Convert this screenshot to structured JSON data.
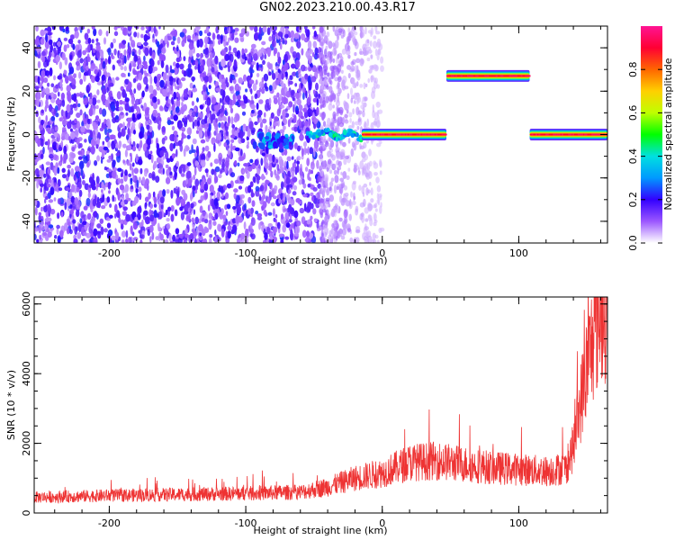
{
  "title": "GN02.2023.210.00.43.R17",
  "chart_data": [
    {
      "type": "heatmap",
      "xlabel": "Height of straight line (km)",
      "ylabel": "Frequency (Hz)",
      "xlim": [
        -255,
        165
      ],
      "ylim": [
        -50,
        50
      ],
      "xticks": [
        -200,
        -100,
        0,
        100
      ],
      "yticks": [
        -40,
        -20,
        0,
        20,
        40
      ],
      "colorbar": {
        "label": "Normalized spectral amplitude",
        "range": [
          0,
          1
        ],
        "ticks": [
          0.0,
          0.2,
          0.4,
          0.6,
          0.8
        ],
        "tick_labels": [
          "0.0",
          "0.2",
          "0.4",
          "0.6",
          "0.8"
        ],
        "colormap": [
          "#ffffff",
          "#9b57ff",
          "#3300ff",
          "#0099ff",
          "#00e0e0",
          "#00ff00",
          "#bfff00",
          "#ffd000",
          "#ff6600",
          "#ff0033",
          "#ff1493"
        ]
      },
      "features": [
        {
          "kind": "noise",
          "x_range": [
            -255,
            -45
          ],
          "y_range": [
            -50,
            50
          ],
          "amplitude": 0.15
        },
        {
          "kind": "fading-noise",
          "x_range": [
            -45,
            0
          ],
          "y_range": [
            -50,
            50
          ],
          "amplitude": 0.05
        },
        {
          "kind": "blob",
          "x_range": [
            -90,
            -65
          ],
          "y_center": -3,
          "amplitude": 0.3
        },
        {
          "kind": "wavy-trace",
          "x_range": [
            -55,
            -15
          ],
          "y_center": 1,
          "amplitude": 0.35
        },
        {
          "kind": "line",
          "x_range": [
            -15,
            47
          ],
          "y_center": 0,
          "amplitude": 0.9
        },
        {
          "kind": "line",
          "x_range": [
            47,
            108
          ],
          "y_center": 27,
          "amplitude": 0.9
        },
        {
          "kind": "line",
          "x_range": [
            108,
            165
          ],
          "y_center": 0,
          "amplitude": 0.9
        }
      ]
    },
    {
      "type": "line",
      "xlabel": "Height of straight line (km)",
      "ylabel": "SNR (10 * v/v)",
      "xlim": [
        -255,
        165
      ],
      "ylim": [
        0,
        6200
      ],
      "xticks": [
        -200,
        -100,
        0,
        100
      ],
      "yticks": [
        0,
        2000,
        4000,
        6000
      ],
      "series": [
        {
          "color": "#ee3333",
          "x": [
            -255,
            -200,
            -150,
            -100,
            -60,
            -40,
            -20,
            0,
            20,
            40,
            60,
            80,
            100,
            120,
            135,
            140,
            145,
            150,
            155,
            160,
            165
          ],
          "y": [
            450,
            500,
            530,
            560,
            600,
            750,
            1000,
            1150,
            1450,
            1500,
            1400,
            1300,
            1250,
            1200,
            1300,
            1900,
            3100,
            4200,
            5100,
            5800,
            6000
          ]
        }
      ]
    }
  ]
}
